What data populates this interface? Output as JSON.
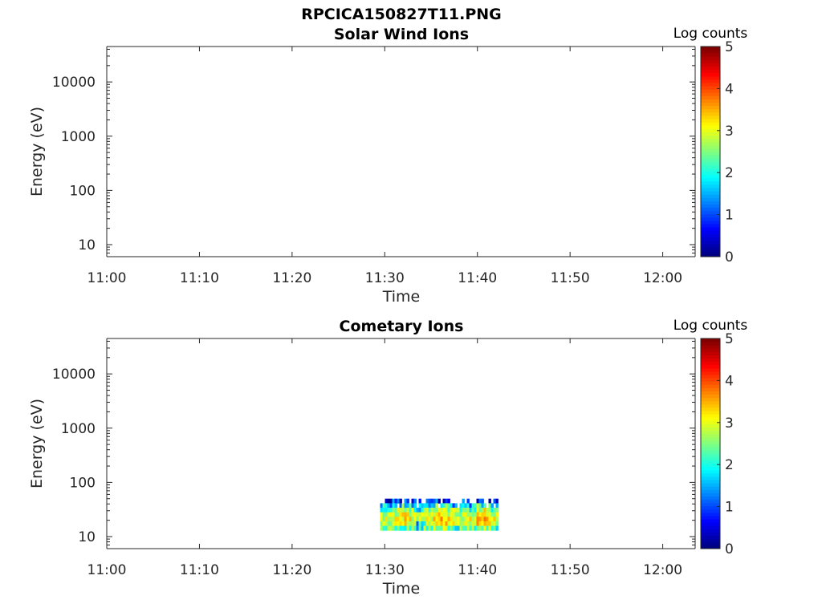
{
  "figure": {
    "title": "RPCICA150827T11.PNG"
  },
  "chart_data": [
    {
      "type": "heatmap",
      "title": "Solar Wind Ions",
      "xlabel": "Time",
      "ylabel": "Energy (eV)",
      "x_ticks": [
        "11:00",
        "11:10",
        "11:20",
        "11:30",
        "11:40",
        "11:50",
        "12:00"
      ],
      "x_range_minutes": [
        0,
        63.5
      ],
      "y_scale": "log",
      "y_ticks": [
        "10",
        "100",
        "1000",
        "10000"
      ],
      "ylim": [
        6,
        45000
      ],
      "colorbar": {
        "label": "Log counts",
        "ticks": [
          "0",
          "1",
          "2",
          "3",
          "4",
          "5"
        ],
        "range": [
          0,
          5
        ],
        "colormap": "jet"
      },
      "data": []
    },
    {
      "type": "heatmap",
      "title": "Cometary Ions",
      "xlabel": "Time",
      "ylabel": "Energy (eV)",
      "x_ticks": [
        "11:00",
        "11:10",
        "11:20",
        "11:30",
        "11:40",
        "11:50",
        "12:00"
      ],
      "x_range_minutes": [
        0,
        63.5
      ],
      "y_scale": "log",
      "y_ticks": [
        "10",
        "100",
        "1000",
        "10000"
      ],
      "ylim": [
        6,
        45000
      ],
      "colorbar": {
        "label": "Log counts",
        "ticks": [
          "0",
          "1",
          "2",
          "3",
          "4",
          "5"
        ],
        "range": [
          0,
          5
        ],
        "colormap": "jet"
      },
      "data": {
        "time_range": [
          "11:29:30",
          "11:42:00"
        ],
        "energy_range_eV": [
          13,
          50
        ],
        "rows": [
          {
            "energy_eV": 45,
            "pattern": "sparse",
            "max_log_counts": 1.5
          },
          {
            "energy_eV": 38,
            "pattern": "mixed",
            "max_log_counts": 2.5
          },
          {
            "energy_eV": 32,
            "pattern": "medium",
            "max_log_counts": 3.5
          },
          {
            "energy_eV": 27,
            "pattern": "high",
            "max_log_counts": 3.8
          },
          {
            "energy_eV": 22,
            "pattern": "high",
            "max_log_counts": 4.0
          },
          {
            "energy_eV": 18,
            "pattern": "high",
            "max_log_counts": 3.9
          },
          {
            "energy_eV": 15,
            "pattern": "medium",
            "max_log_counts": 3.3
          }
        ]
      }
    }
  ]
}
